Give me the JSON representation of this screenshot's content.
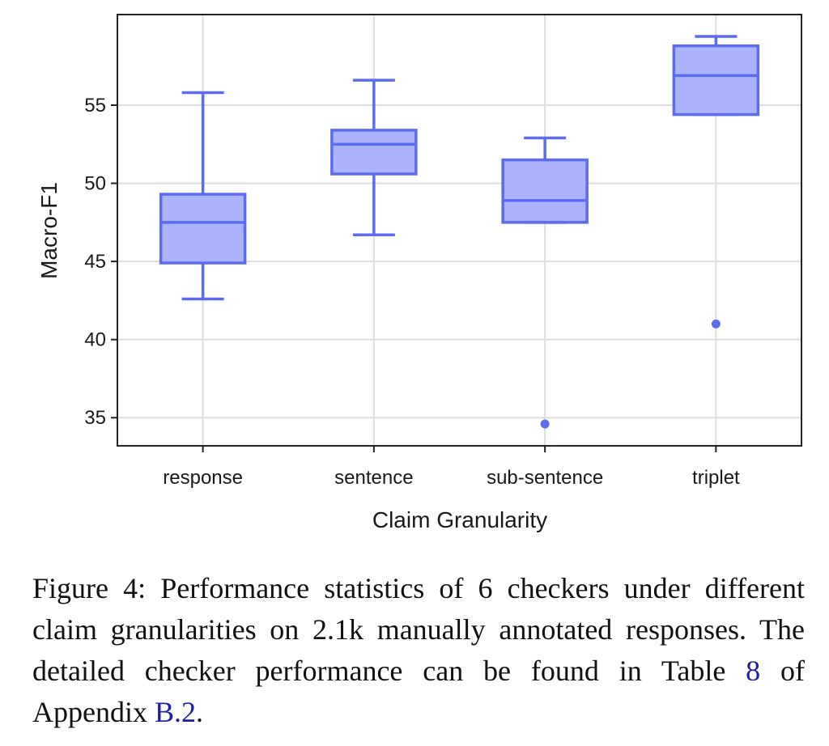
{
  "chart_data": {
    "type": "boxplot",
    "xlabel": "Claim Granularity",
    "ylabel": "Macro-F1",
    "categories": [
      "response",
      "sentence",
      "sub-sentence",
      "triplet"
    ],
    "ylim": [
      33.2,
      60.8
    ],
    "yticks": [
      35,
      40,
      45,
      50,
      55
    ],
    "grid": true,
    "boxes": [
      {
        "category": "response",
        "whisker_low": 42.6,
        "q1": 44.9,
        "median": 47.5,
        "q3": 49.3,
        "whisker_high": 55.8,
        "outliers": []
      },
      {
        "category": "sentence",
        "whisker_low": 46.7,
        "q1": 50.6,
        "median": 52.5,
        "q3": 53.4,
        "whisker_high": 56.6,
        "outliers": []
      },
      {
        "category": "sub-sentence",
        "whisker_low": 47.5,
        "q1": 47.5,
        "median": 48.9,
        "q3": 51.5,
        "whisker_high": 52.9,
        "outliers": [
          34.6
        ]
      },
      {
        "category": "triplet",
        "whisker_low": 54.4,
        "q1": 54.4,
        "median": 56.9,
        "q3": 58.8,
        "whisker_high": 59.4,
        "outliers": [
          41.0
        ]
      }
    ],
    "colors": {
      "fill": "#aab3fb",
      "stroke": "#5c6cf0",
      "grid": "#dddddd",
      "axis": "#222222"
    }
  },
  "caption": {
    "prefix": "Figure 4:  Performance statistics of 6 checkers under different claim granularities on 2.1k manually annotated responses.  The detailed checker performance can be found in Table ",
    "table_ref": "8",
    "middle": " of Appendix ",
    "appendix_ref": "B.2",
    "suffix": "."
  }
}
